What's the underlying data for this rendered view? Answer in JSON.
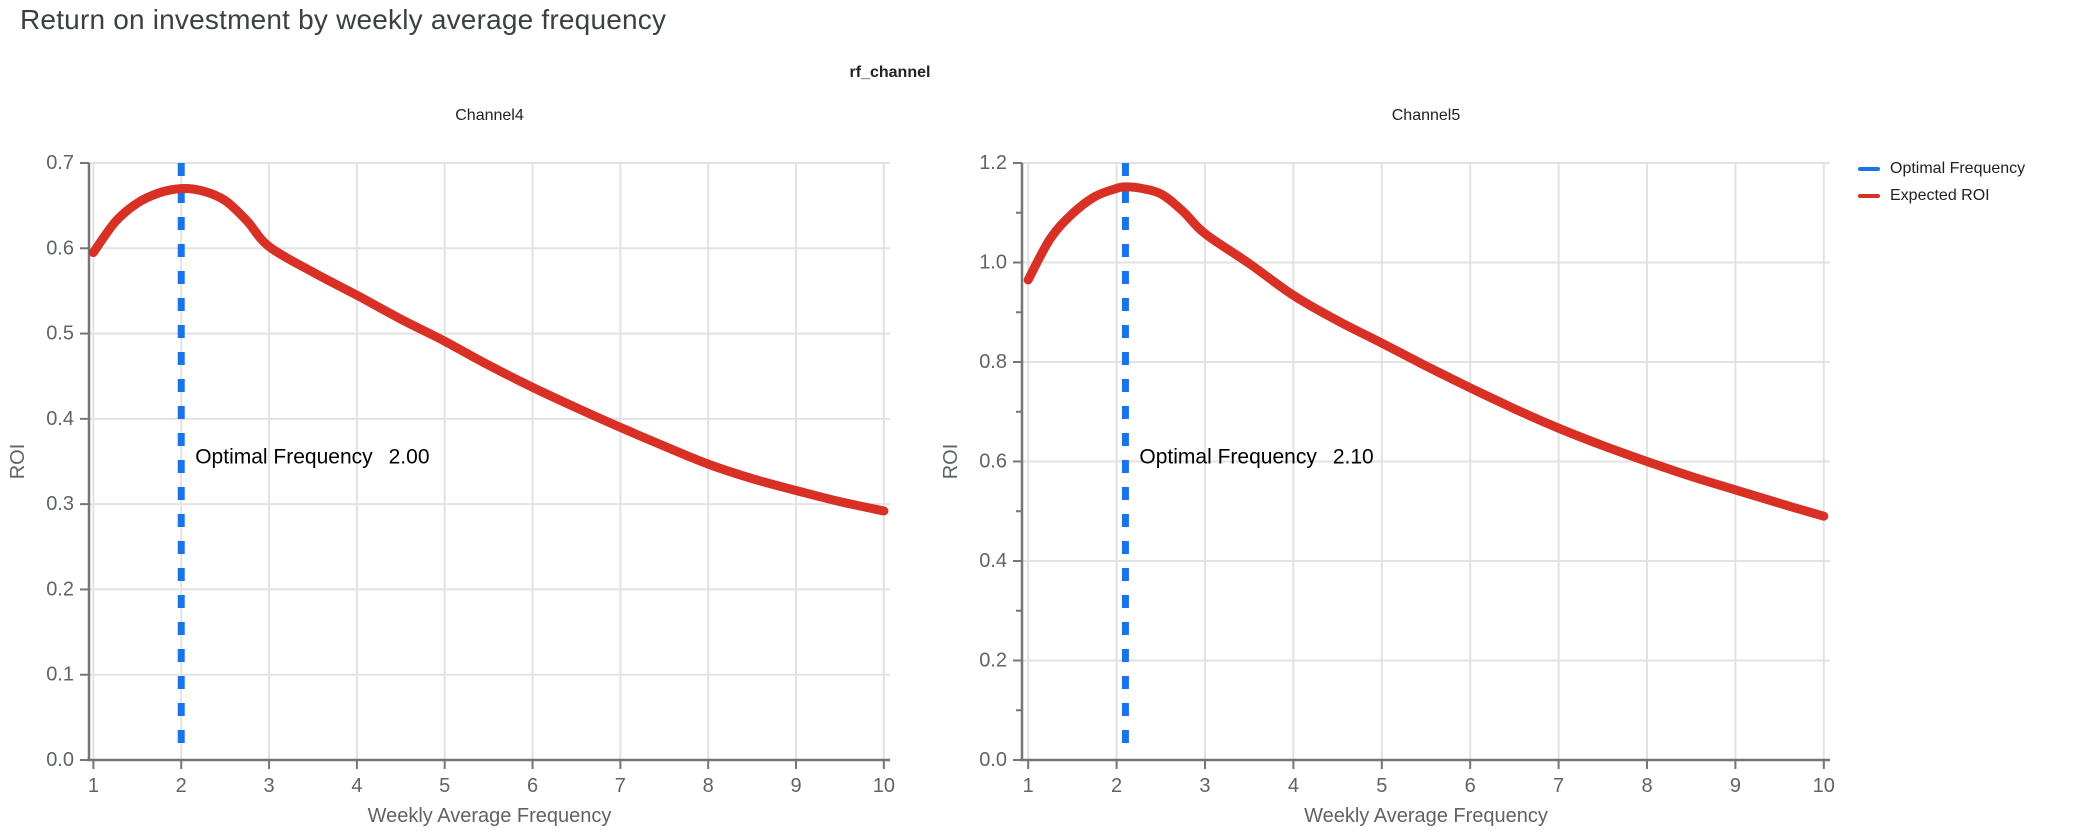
{
  "page": {
    "title": "Return on investment by weekly average frequency"
  },
  "figure": {
    "subtitle": "rf_channel"
  },
  "legend": {
    "items": [
      {
        "label": "Optimal Frequency",
        "color": "#1a73e8"
      },
      {
        "label": "Expected ROI",
        "color": "#d93025"
      }
    ]
  },
  "colors": {
    "optimal_frequency_line": "#1a73e8",
    "expected_roi_line": "#d93025",
    "title_text": "#3c4043",
    "axis_text": "#5f6368",
    "axis_line": "#757575",
    "gridline": "#e2e2e2",
    "annotation_text": "#000000",
    "background": "#ffffff"
  },
  "chart_data": [
    {
      "type": "line",
      "title": "Channel4",
      "xlabel": "Weekly Average Frequency",
      "ylabel": "ROI",
      "xlim": [
        0.95,
        10.07
      ],
      "ylim": [
        0,
        0.7
      ],
      "xticks": [
        1,
        2,
        3,
        4,
        5,
        6,
        7,
        8,
        9,
        10
      ],
      "yticks": [
        0,
        0.1,
        0.2,
        0.3,
        0.4,
        0.5,
        0.6,
        0.7
      ],
      "ytick_labels": [
        "0.0",
        "0.1",
        "0.2",
        "0.3",
        "0.4",
        "0.5",
        "0.6",
        "0.7"
      ],
      "yticks_minor": [],
      "grid": true,
      "legend_position": "outside-right",
      "optimal_frequency": 2.0,
      "annotation": {
        "label": "Optimal Frequency",
        "value": "2.00"
      },
      "series": [
        {
          "name": "Expected ROI",
          "x": [
            1,
            1.25,
            1.5,
            1.75,
            2,
            2.25,
            2.5,
            2.75,
            3,
            3.5,
            4,
            4.5,
            5,
            5.5,
            6,
            6.5,
            7,
            7.5,
            8,
            8.5,
            9,
            9.5,
            10
          ],
          "y": [
            0.595,
            0.631,
            0.653,
            0.665,
            0.67,
            0.667,
            0.656,
            0.632,
            0.602,
            0.572,
            0.545,
            0.517,
            0.491,
            0.463,
            0.437,
            0.413,
            0.39,
            0.368,
            0.347,
            0.33,
            0.316,
            0.303,
            0.292
          ]
        }
      ]
    },
    {
      "type": "line",
      "title": "Channel5",
      "xlabel": "Weekly Average Frequency",
      "ylabel": "ROI",
      "xlim": [
        0.93,
        10.07
      ],
      "ylim": [
        0,
        1.2
      ],
      "xticks": [
        1,
        2,
        3,
        4,
        5,
        6,
        7,
        8,
        9,
        10
      ],
      "yticks": [
        0,
        0.2,
        0.4,
        0.6,
        0.8,
        1.0,
        1.2
      ],
      "ytick_labels": [
        "0.0",
        "0.2",
        "0.4",
        "0.6",
        "0.8",
        "1.0",
        "1.2"
      ],
      "yticks_minor": [
        0.1,
        0.3,
        0.5,
        0.7,
        0.9,
        1.1
      ],
      "grid": true,
      "legend_position": "outside-right",
      "optimal_frequency": 2.1,
      "annotation": {
        "label": "Optimal Frequency",
        "value": "2.10"
      },
      "series": [
        {
          "name": "Expected ROI",
          "x": [
            1,
            1.25,
            1.5,
            1.75,
            2,
            2.1,
            2.25,
            2.5,
            2.75,
            3,
            3.5,
            4,
            4.5,
            5,
            5.5,
            6,
            6.5,
            7,
            7.5,
            8,
            8.5,
            9,
            9.5,
            10
          ],
          "y": [
            0.965,
            1.048,
            1.098,
            1.132,
            1.149,
            1.152,
            1.15,
            1.138,
            1.103,
            1.058,
            0.998,
            0.934,
            0.883,
            0.838,
            0.792,
            0.748,
            0.706,
            0.667,
            0.632,
            0.6,
            0.57,
            0.543,
            0.516,
            0.49
          ]
        }
      ]
    }
  ]
}
